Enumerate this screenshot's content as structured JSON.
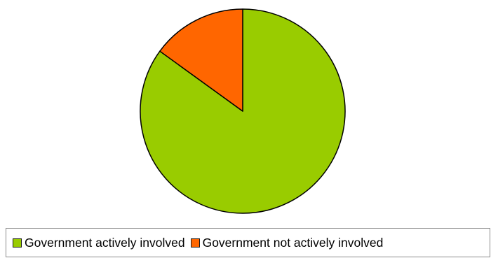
{
  "chart_data": {
    "type": "pie",
    "title": "",
    "series": [
      {
        "values": [
          85,
          15
        ]
      }
    ],
    "categories": [
      "Government actively involved",
      "Government not actively involved"
    ],
    "colors": [
      "#99cc00",
      "#ff6600"
    ],
    "start_angle_deg": 0,
    "direction": "clockwise",
    "legend_position": "bottom"
  }
}
